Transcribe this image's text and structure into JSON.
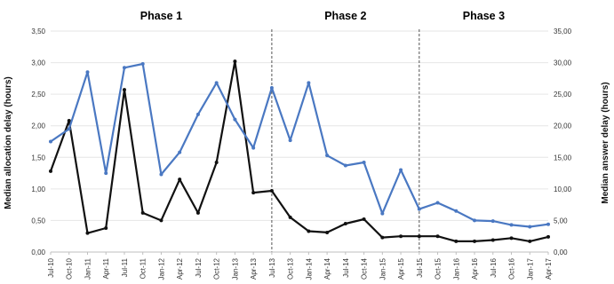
{
  "chart_data": {
    "type": "line",
    "title": "",
    "phases": [
      "Phase 1",
      "Phase 2",
      "Phase 3"
    ],
    "x": [
      "Jul-10",
      "Oct-10",
      "Jan-11",
      "Apr-11",
      "Jul-11",
      "Oct-11",
      "Jan-12",
      "Apr-12",
      "Jul-12",
      "Oct-12",
      "Jan-13",
      "Apr-13",
      "Jul-13",
      "Oct-13",
      "Jan-14",
      "Apr-14",
      "Jul-14",
      "Oct-14",
      "Jan-15",
      "Apr-15",
      "Jul-15",
      "Oct-15",
      "Jan-16",
      "Apr-16",
      "Jul-16",
      "Oct-16",
      "Jan-17",
      "Apr-17"
    ],
    "ylabel": "Median allocation delay (hours)",
    "y2label": "Median answer delay (hours)",
    "ylim": [
      0,
      3.5
    ],
    "y2lim": [
      0,
      35
    ],
    "yticks": [
      "0,00",
      "0,50",
      "1,00",
      "1,50",
      "2,00",
      "2,50",
      "3,00",
      "3,50"
    ],
    "y2ticks": [
      "0,00",
      "5,00",
      "10,00",
      "15,00",
      "20,00",
      "25,00",
      "30,00",
      "35,00"
    ],
    "phase_boundaries": [
      "Jul-13",
      "Jul-15"
    ],
    "series": [
      {
        "axis": "left",
        "color": "#111111",
        "values": [
          1.28,
          2.08,
          0.3,
          0.38,
          2.57,
          0.62,
          0.5,
          1.15,
          0.62,
          1.42,
          3.02,
          0.94,
          0.97,
          0.55,
          0.33,
          0.31,
          0.45,
          0.52,
          0.23,
          0.25,
          0.25,
          0.25,
          0.17,
          0.17,
          0.19,
          0.22,
          0.17,
          0.24
        ]
      },
      {
        "axis": "right",
        "color": "#4a78c2",
        "values": [
          17.5,
          19.5,
          28.5,
          12.5,
          29.2,
          29.8,
          12.3,
          15.8,
          21.8,
          26.8,
          21.0,
          16.5,
          26.0,
          17.7,
          26.8,
          15.3,
          13.7,
          14.2,
          6.1,
          13.0,
          6.8,
          7.8,
          6.5,
          5.0,
          4.9,
          4.3,
          4.0,
          4.4
        ]
      }
    ]
  }
}
